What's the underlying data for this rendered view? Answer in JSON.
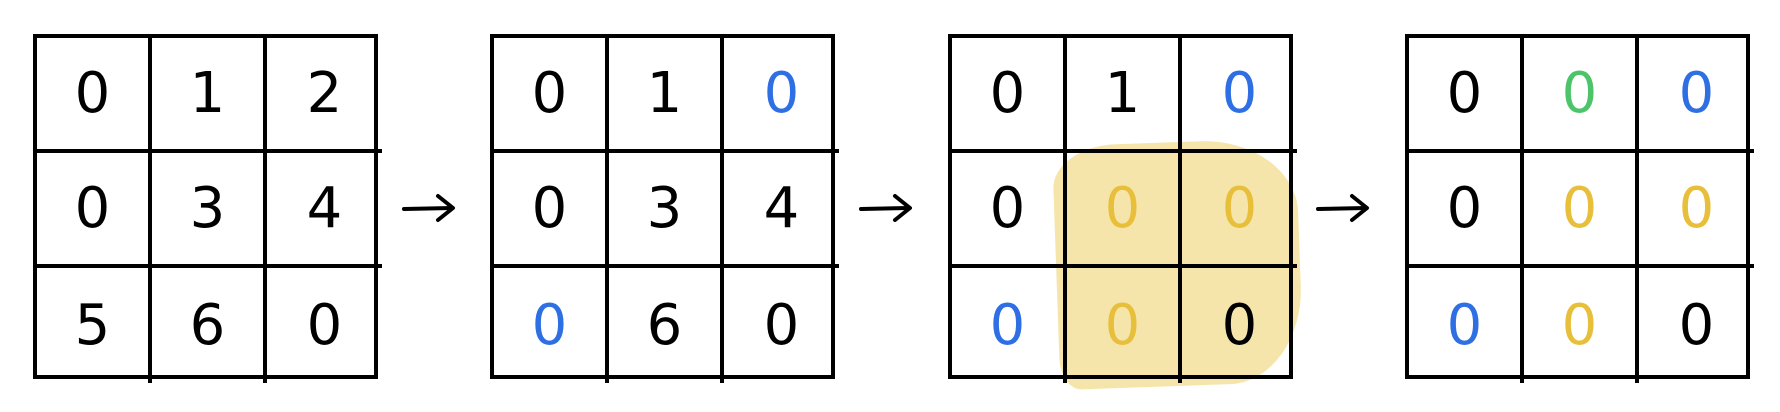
{
  "colors": {
    "black": "#000000",
    "blue": "#2f6fe4",
    "yellow": "#e8bf3a",
    "green": "#4dc46a",
    "highlight_fill": "#f6e4a6"
  },
  "arrow_icon": "right-arrow-icon",
  "grids": [
    {
      "cells": [
        {
          "text": "0",
          "color": "black"
        },
        {
          "text": "1",
          "color": "black"
        },
        {
          "text": "2",
          "color": "black"
        },
        {
          "text": "0",
          "color": "black"
        },
        {
          "text": "3",
          "color": "black"
        },
        {
          "text": "4",
          "color": "black"
        },
        {
          "text": "5",
          "color": "black"
        },
        {
          "text": "6",
          "color": "black"
        },
        {
          "text": "0",
          "color": "black"
        }
      ]
    },
    {
      "cells": [
        {
          "text": "0",
          "color": "black"
        },
        {
          "text": "1",
          "color": "black"
        },
        {
          "text": "0",
          "color": "blue"
        },
        {
          "text": "0",
          "color": "black"
        },
        {
          "text": "3",
          "color": "black"
        },
        {
          "text": "4",
          "color": "black"
        },
        {
          "text": "0",
          "color": "blue"
        },
        {
          "text": "6",
          "color": "black"
        },
        {
          "text": "0",
          "color": "black"
        }
      ]
    },
    {
      "highlight": "bottom-right 2x2 block",
      "cells": [
        {
          "text": "0",
          "color": "black"
        },
        {
          "text": "1",
          "color": "black"
        },
        {
          "text": "0",
          "color": "blue"
        },
        {
          "text": "0",
          "color": "black"
        },
        {
          "text": "0",
          "color": "yellow"
        },
        {
          "text": "0",
          "color": "yellow"
        },
        {
          "text": "0",
          "color": "blue"
        },
        {
          "text": "0",
          "color": "yellow"
        },
        {
          "text": "0",
          "color": "black"
        }
      ]
    },
    {
      "cells": [
        {
          "text": "0",
          "color": "black"
        },
        {
          "text": "0",
          "color": "green"
        },
        {
          "text": "0",
          "color": "blue"
        },
        {
          "text": "0",
          "color": "black"
        },
        {
          "text": "0",
          "color": "yellow"
        },
        {
          "text": "0",
          "color": "yellow"
        },
        {
          "text": "0",
          "color": "blue"
        },
        {
          "text": "0",
          "color": "yellow"
        },
        {
          "text": "0",
          "color": "black"
        }
      ]
    }
  ]
}
